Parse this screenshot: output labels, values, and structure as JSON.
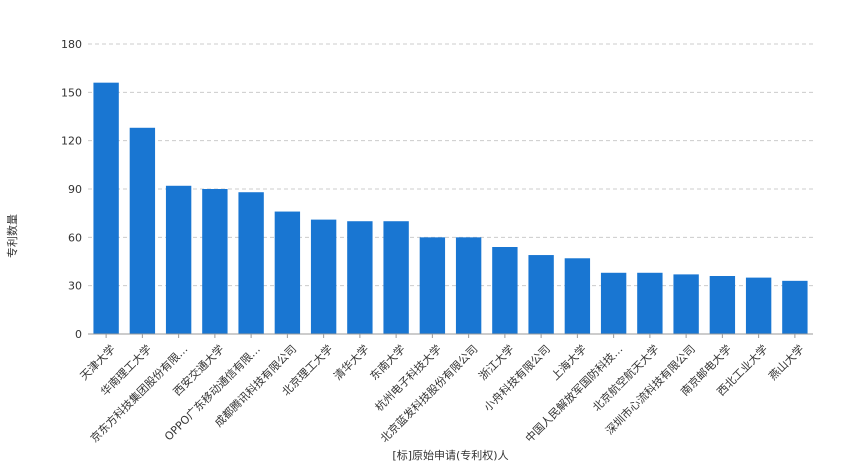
{
  "chart_data": {
    "type": "bar",
    "categories": [
      "天津大学",
      "华南理工大学",
      "京东方科技集团股份有限…",
      "西安交通大学",
      "OPPO广东移动通信有限…",
      "成都腾讯科技有限公司",
      "北京理工大学",
      "清华大学",
      "东南大学",
      "杭州电子科技大学",
      "北京蓝发科技股份有限公司",
      "浙江大学",
      "小舟科技有限公司",
      "上海大学",
      "中国人民解放军国防科技…",
      "北京航空航天大学",
      "深圳市心流科技有限公司",
      "南京邮电大学",
      "西北工业大学",
      "燕山大学"
    ],
    "values": [
      156,
      128,
      92,
      90,
      88,
      76,
      71,
      70,
      70,
      60,
      60,
      54,
      49,
      47,
      38,
      38,
      37,
      36,
      35,
      33
    ],
    "xlabel": "[标]原始申请(专利权)人",
    "ylabel": "专利数量",
    "ylim": [
      0,
      180
    ],
    "yticks": [
      0,
      30,
      60,
      90,
      120,
      150,
      180
    ],
    "grid": true,
    "bar_color": "#1976d2",
    "grid_color": "#cccccc"
  }
}
